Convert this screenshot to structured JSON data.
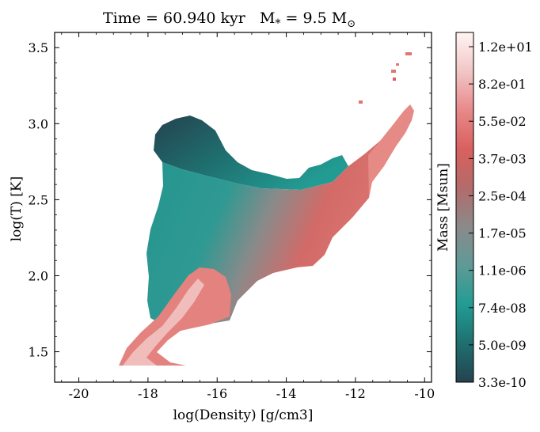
{
  "chart_data": {
    "type": "heatmap",
    "title": "Time = 60.940 kyr   M$_*$ = 9.5 M$_\\odot$",
    "title_parts": {
      "main": "Time = 60.940 kyr",
      "mstar": "M",
      "mstar_sub": "*",
      "mstar_val": " = 9.5 M",
      "msun_sub": "⊙"
    },
    "xlabel": "log(Density) [g/cm3]",
    "ylabel": "log(T) [K]",
    "xlim": [
      -20.7,
      -9.8
    ],
    "ylim": [
      1.3,
      3.6
    ],
    "xticks": [
      -20,
      -18,
      -16,
      -14,
      -12,
      -10
    ],
    "yticks": [
      1.5,
      2.0,
      2.5,
      3.0,
      3.5
    ],
    "xtick_labels": [
      "-20",
      "-18",
      "-16",
      "-14",
      "-12",
      "-10"
    ],
    "ytick_labels": [
      "1.5",
      "2.0",
      "2.5",
      "3.0",
      "3.5"
    ],
    "colorbar": {
      "label": "Mass [Msun]",
      "scale": "log",
      "tick_labels": [
        "1.2e+01",
        "8.2e-01",
        "5.5e-02",
        "3.7e-03",
        "2.5e-04",
        "1.7e-05",
        "1.1e-06",
        "7.4e-08",
        "5.0e-09",
        "3.3e-10"
      ],
      "colors": [
        "#fff5f3",
        "#f2c6c6",
        "#e8898a",
        "#d9605e",
        "#b36b6b",
        "#8a8a8a",
        "#5e9a96",
        "#229c93",
        "#1f6f6f",
        "#24424f"
      ]
    },
    "region_notes": {
      "cold_dense_branch": {
        "density": [
          -18.8,
          -16.5
        ],
        "logT": [
          1.42,
          1.9
        ],
        "mass": "high"
      },
      "main_body": {
        "density": [
          -18.3,
          -12.0
        ],
        "logT": [
          1.9,
          2.75
        ],
        "mass": "low-to-mid"
      },
      "hot_upper_left": {
        "density": [
          -18.3,
          -15.5
        ],
        "logT": [
          2.6,
          3.05
        ],
        "mass": "very low"
      },
      "hot_dense_tail": {
        "density": [
          -12.5,
          -10.4
        ],
        "logT": [
          2.6,
          3.45
        ],
        "mass": "mid"
      }
    }
  }
}
